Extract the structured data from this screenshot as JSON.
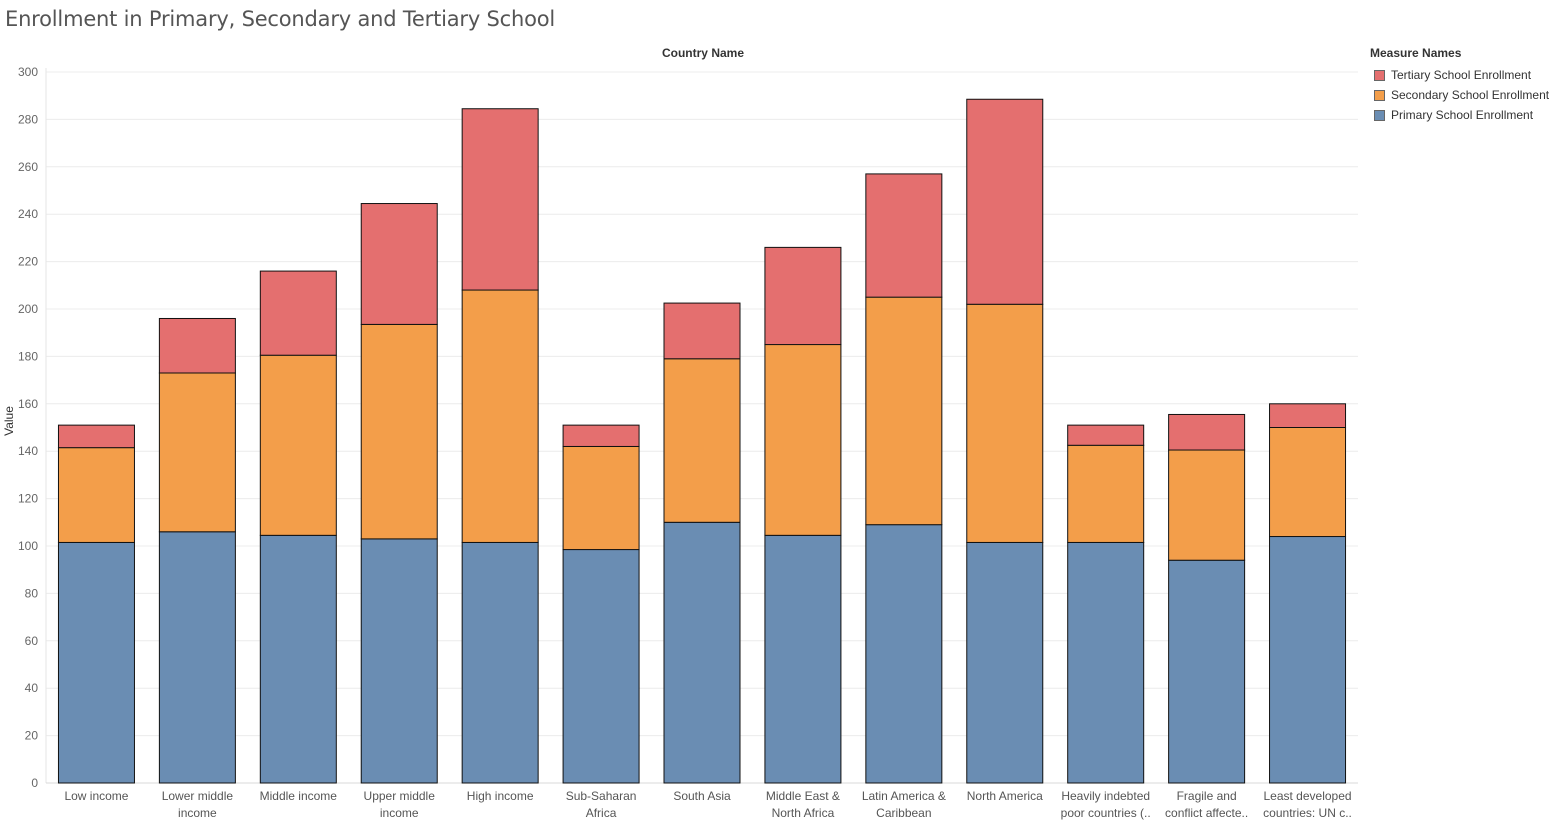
{
  "title": "Enrollment in Primary, Secondary and Tertiary School",
  "header": "Country Name",
  "chart_data": {
    "type": "bar",
    "stacked": true,
    "title": "Enrollment in Primary, Secondary and Tertiary School",
    "xlabel": "Country Name",
    "ylabel": "Value",
    "ylim": [
      0,
      300
    ],
    "yticks": [
      0,
      20,
      40,
      60,
      80,
      100,
      120,
      140,
      160,
      180,
      200,
      220,
      240,
      260,
      280,
      300
    ],
    "categories": [
      [
        "Low income"
      ],
      [
        "Lower middle",
        "income"
      ],
      [
        "Middle income"
      ],
      [
        "Upper middle",
        "income"
      ],
      [
        "High income"
      ],
      [
        "Sub-Saharan",
        "Africa"
      ],
      [
        "South Asia"
      ],
      [
        "Middle East &",
        "North Africa"
      ],
      [
        "Latin America &",
        "Caribbean"
      ],
      [
        "North America"
      ],
      [
        "Heavily indebted",
        "poor countries (.."
      ],
      [
        "Fragile and",
        "conflict affecte.."
      ],
      [
        "Least developed",
        "countries: UN c.."
      ]
    ],
    "series": [
      {
        "name": "Primary School Enrollment",
        "color": "#6a8db3",
        "values": [
          101.5,
          106,
          104.5,
          103,
          101.5,
          98.5,
          110,
          104.5,
          109,
          101.5,
          101.5,
          94,
          104
        ]
      },
      {
        "name": "Secondary School Enrollment",
        "color": "#f39e4a",
        "values": [
          40,
          67,
          76,
          90.5,
          106.5,
          43.5,
          69,
          80.5,
          96,
          100.5,
          41,
          46.5,
          46
        ]
      },
      {
        "name": "Tertiary School Enrollment",
        "color": "#e46f6f",
        "values": [
          9.5,
          23,
          35.5,
          51,
          76.5,
          9,
          23.5,
          41,
          52,
          86.5,
          8.5,
          15,
          10
        ]
      }
    ],
    "grid": true,
    "legend_title": "Measure Names",
    "legend_placement": "right"
  }
}
